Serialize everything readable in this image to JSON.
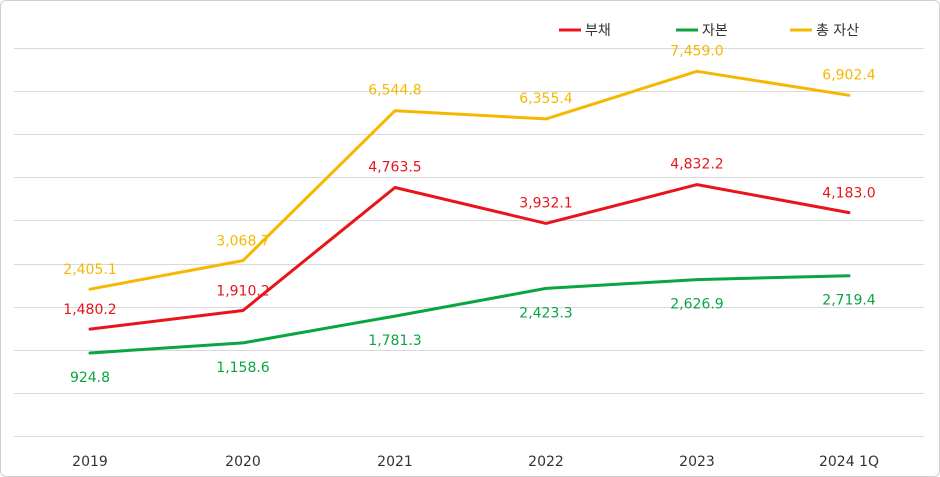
{
  "chart_data": {
    "type": "line",
    "categories": [
      "2019",
      "2020",
      "2021",
      "2022",
      "2023",
      "2024 1Q"
    ],
    "series": [
      {
        "name": "부채",
        "color": "#e8141c",
        "values": [
          1480.2,
          1910.2,
          4763.5,
          3932.1,
          4832.2,
          4183.0
        ],
        "labels": [
          "1,480.2",
          "1,910.2",
          "4,763.5",
          "3,932.1",
          "4,832.2",
          "4,183.0"
        ]
      },
      {
        "name": "자본",
        "color": "#0aa541",
        "values": [
          924.8,
          1158.6,
          1781.3,
          2423.3,
          2626.9,
          2719.4
        ],
        "labels": [
          "924.8",
          "1,158.6",
          "1,781.3",
          "2,423.3",
          "2,626.9",
          "2,719.4"
        ]
      },
      {
        "name": "총 자산",
        "color": "#f5b800",
        "values": [
          2405.1,
          3068.7,
          6544.8,
          6355.4,
          7459.0,
          6902.4
        ],
        "labels": [
          "2,405.1",
          "3,068.7",
          "6,544.8",
          "6,355.4",
          "7,459.0",
          "6,902.4"
        ]
      }
    ],
    "ylim": [
      -1000,
      8000
    ],
    "grid": true,
    "legend_position": "top-right",
    "xlabel": "",
    "ylabel": ""
  }
}
